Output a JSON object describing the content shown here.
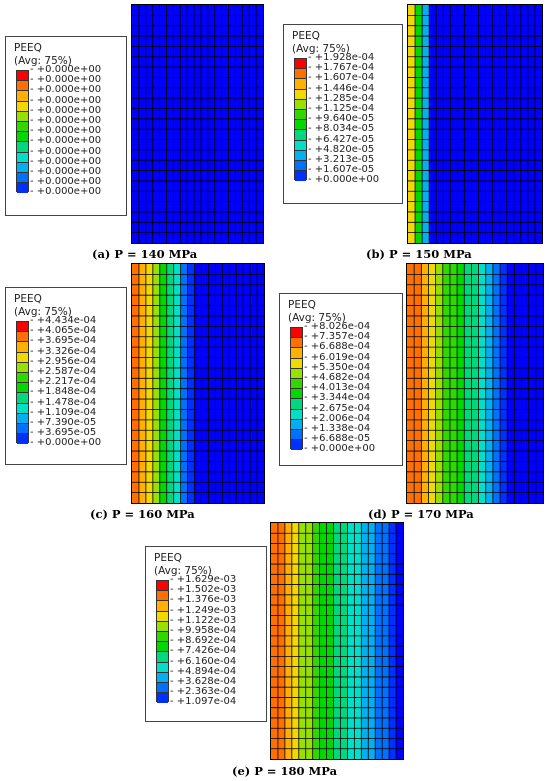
{
  "palette": [
    "#ff0000",
    "#ff7000",
    "#ffb000",
    "#f0d800",
    "#98e000",
    "#30d800",
    "#00d800",
    "#00d880",
    "#00e0c8",
    "#00b0f0",
    "#0070ff",
    "#0030ff",
    "#0000ff"
  ],
  "panels": [
    {
      "id": "a",
      "caption_letter": "(a)",
      "caption_text": " P = 140 MPa",
      "legend_title": "PEEQ",
      "legend_avg": "(Avg: 75%)",
      "legend_values": [
        "+0.000e+00",
        "+0.000e+00",
        "+0.000e+00",
        "+0.000e+00",
        "+0.000e+00",
        "+0.000e+00",
        "+0.000e+00",
        "+0.000e+00",
        "+0.000e+00",
        "+0.000e+00",
        "+0.000e+00",
        "+0.000e+00",
        "+0.000e+00"
      ],
      "column_bands": [
        12,
        12,
        12,
        12,
        12,
        12,
        12,
        12,
        12,
        12,
        12,
        12,
        12,
        12,
        12,
        12,
        12,
        12,
        12
      ]
    },
    {
      "id": "b",
      "caption_letter": "(b)",
      "caption_text": " P = 150 MPa",
      "legend_title": "PEEQ",
      "legend_avg": "(Avg: 75%)",
      "legend_values": [
        "+1.928e-04",
        "+1.767e-04",
        "+1.607e-04",
        "+1.446e-04",
        "+1.285e-04",
        "+1.125e-04",
        "+9.640e-05",
        "+8.034e-05",
        "+6.427e-05",
        "+4.820e-05",
        "+3.213e-05",
        "+1.607e-05",
        "+0.000e+00"
      ],
      "column_bands": [
        3,
        6,
        9,
        12,
        12,
        12,
        12,
        12,
        12,
        12,
        12,
        12,
        12,
        12,
        12,
        12,
        12,
        12,
        12
      ]
    },
    {
      "id": "c",
      "caption_letter": "(c)",
      "caption_text": " P = 160 MPa",
      "legend_title": "PEEQ",
      "legend_avg": "(Avg: 75%)",
      "legend_values": [
        "+4.434e-04",
        "+4.065e-04",
        "+3.695e-04",
        "+3.326e-04",
        "+2.956e-04",
        "+2.587e-04",
        "+2.217e-04",
        "+1.848e-04",
        "+1.478e-04",
        "+1.109e-04",
        "+7.390e-05",
        "+3.695e-05",
        "+0.000e+00"
      ],
      "column_bands": [
        1,
        2,
        3,
        4,
        6,
        7,
        8,
        10,
        11,
        12,
        12,
        12,
        12,
        12,
        12,
        12,
        12,
        12,
        12
      ]
    },
    {
      "id": "d",
      "caption_letter": "(d)",
      "caption_text": " P = 170 MPa",
      "legend_title": "PEEQ",
      "legend_avg": "(Avg: 75%)",
      "legend_values": [
        "+8.026e-04",
        "+7.357e-04",
        "+6.688e-04",
        "+6.019e-04",
        "+5.350e-04",
        "+4.682e-04",
        "+4.013e-04",
        "+3.344e-04",
        "+2.675e-04",
        "+2.006e-04",
        "+1.338e-04",
        "+6.688e-05",
        "+0.000e+00"
      ],
      "column_bands": [
        1,
        1,
        2,
        3,
        4,
        5,
        5,
        6,
        7,
        7,
        8,
        9,
        10,
        11,
        12,
        12,
        12,
        12,
        12
      ]
    },
    {
      "id": "e",
      "caption_letter": "(e)",
      "caption_text": " P = 180 MPa",
      "legend_title": "PEEQ",
      "legend_avg": "(Avg: 75%)",
      "legend_values": [
        "+1.629e-03",
        "+1.502e-03",
        "+1.376e-03",
        "+1.249e-03",
        "+1.122e-03",
        "+9.958e-04",
        "+8.692e-04",
        "+7.426e-04",
        "+6.160e-04",
        "+4.894e-04",
        "+3.628e-04",
        "+2.363e-04",
        "+1.097e-04"
      ],
      "column_bands": [
        1,
        1,
        2,
        3,
        4,
        4,
        5,
        6,
        6,
        7,
        7,
        8,
        8,
        9,
        9,
        10,
        10,
        11,
        12
      ]
    }
  ]
}
